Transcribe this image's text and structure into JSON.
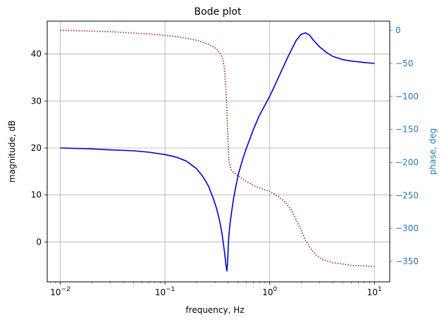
{
  "chart_data": {
    "type": "line",
    "title": "Bode plot",
    "xlabel": "frequency, Hz",
    "ylabel_left": "magnitude, dB",
    "ylabel_right": "phase, deg",
    "x_scale": "log",
    "xlim": [
      0.0075,
      14
    ],
    "ylim_left": [
      -8.5,
      47
    ],
    "ylim_right": [
      -381,
      14
    ],
    "grid": true,
    "x_ticks": [
      {
        "value": 0.01,
        "base": "10",
        "exp": "−2"
      },
      {
        "value": 0.1,
        "base": "10",
        "exp": "−1"
      },
      {
        "value": 1,
        "base": "10",
        "exp": "0"
      },
      {
        "value": 10,
        "base": "10",
        "exp": "1"
      }
    ],
    "y_ticks_left": [
      {
        "value": 0,
        "label": "0"
      },
      {
        "value": 10,
        "label": "10"
      },
      {
        "value": 20,
        "label": "20"
      },
      {
        "value": 30,
        "label": "30"
      },
      {
        "value": 40,
        "label": "40"
      }
    ],
    "y_ticks_right": [
      {
        "value": 0,
        "label": "0"
      },
      {
        "value": -50,
        "label": "−50"
      },
      {
        "value": -100,
        "label": "−100"
      },
      {
        "value": -150,
        "label": "−150"
      },
      {
        "value": -200,
        "label": "−200"
      },
      {
        "value": -250,
        "label": "−250"
      },
      {
        "value": -300,
        "label": "−300"
      },
      {
        "value": -350,
        "label": "−350"
      }
    ],
    "colors": {
      "magnitude": "#0000cc",
      "phase": "#a52a2a",
      "right_axis": "#1f77b4",
      "grid": "#b0b0b0"
    },
    "series": [
      {
        "axis": "left",
        "style": "solid",
        "x": [
          0.01,
          0.02,
          0.03,
          0.05,
          0.07,
          0.1,
          0.13,
          0.16,
          0.2,
          0.23,
          0.26,
          0.29,
          0.31,
          0.33,
          0.35,
          0.36,
          0.37,
          0.38,
          0.39,
          0.395,
          0.4,
          0.405,
          0.41,
          0.42,
          0.43,
          0.45,
          0.47,
          0.5,
          0.55,
          0.6,
          0.7,
          0.8,
          1.0,
          1.2,
          1.5,
          1.8,
          2.0,
          2.2,
          2.4,
          2.6,
          3.0,
          3.5,
          4.0,
          5.0,
          6.0,
          8.0,
          10.0
        ],
        "y": [
          20.0,
          19.8,
          19.6,
          19.4,
          19.1,
          18.6,
          18.0,
          17.2,
          15.6,
          13.9,
          11.9,
          9.2,
          7.2,
          4.8,
          1.8,
          -0.2,
          -2.2,
          -4.5,
          -6.2,
          -4.5,
          -2.0,
          0.5,
          2.0,
          4.3,
          6.0,
          9.0,
          11.3,
          14.3,
          17.5,
          20.0,
          24.0,
          27.0,
          31.0,
          34.8,
          39.5,
          43.0,
          44.2,
          44.5,
          44.0,
          43.0,
          41.5,
          40.3,
          39.5,
          38.8,
          38.5,
          38.2,
          38.0
        ]
      },
      {
        "axis": "right",
        "style": "dotted",
        "x": [
          0.01,
          0.02,
          0.03,
          0.05,
          0.07,
          0.1,
          0.13,
          0.16,
          0.2,
          0.23,
          0.26,
          0.29,
          0.31,
          0.33,
          0.35,
          0.36,
          0.37,
          0.38,
          0.39,
          0.395,
          0.4,
          0.405,
          0.41,
          0.42,
          0.43,
          0.45,
          0.5,
          0.55,
          0.6,
          0.7,
          0.8,
          1.0,
          1.2,
          1.4,
          1.6,
          1.8,
          2.0,
          2.2,
          2.5,
          2.8,
          3.2,
          4.0,
          5.0,
          6.0,
          8.0,
          10.0
        ],
        "y": [
          0,
          -1,
          -2,
          -4,
          -5.5,
          -7.5,
          -9.5,
          -12,
          -15,
          -18,
          -21,
          -25,
          -28,
          -33,
          -40,
          -47,
          -60,
          -85,
          -120,
          -150,
          -170,
          -190,
          -200,
          -207,
          -211,
          -215,
          -220,
          -225,
          -229,
          -235,
          -239,
          -244,
          -251,
          -260,
          -272,
          -288,
          -303,
          -318,
          -332,
          -341,
          -347,
          -352,
          -354,
          -356,
          -357,
          -358
        ]
      }
    ]
  }
}
